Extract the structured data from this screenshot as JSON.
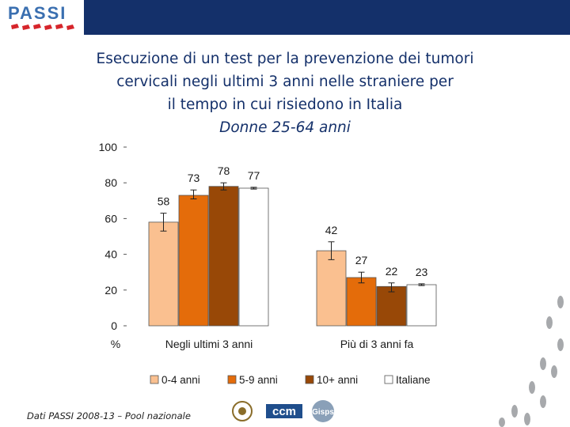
{
  "header": {
    "logo_text": "PASSI"
  },
  "title": {
    "lines": [
      "Esecuzione di un test per la prevenzione dei tumori",
      "cervicali negli ultimi 3 anni nelle straniere per",
      "il tempo in cui risiedono in Italia"
    ],
    "subtitle": "Donne 25-64 anni"
  },
  "chart_data": {
    "type": "bar",
    "categories": [
      "Negli ultimi 3 anni",
      "Più di 3 anni fa"
    ],
    "series": [
      {
        "name": "0-4 anni",
        "values": [
          58,
          42
        ],
        "ci": [
          [
            53,
            63
          ],
          [
            37,
            47
          ]
        ],
        "color": "#fac090"
      },
      {
        "name": "5-9 anni",
        "values": [
          73,
          27
        ],
        "ci": [
          [
            71,
            76
          ],
          [
            24,
            30
          ]
        ],
        "color": "#e46c0a"
      },
      {
        "name": "10+ anni",
        "values": [
          78,
          22
        ],
        "ci": [
          [
            76,
            80
          ],
          [
            19,
            24
          ]
        ],
        "color": "#984807"
      },
      {
        "name": "Italiane",
        "values": [
          77,
          23
        ],
        "ci": [
          [
            76.5,
            77.5
          ],
          [
            22.5,
            23.5
          ]
        ],
        "color": "#ffffff"
      }
    ],
    "ylim": [
      0,
      100
    ],
    "yticks": [
      "0",
      "20",
      "40",
      "60",
      "80",
      "100"
    ],
    "ylabel": "%",
    "legend_position": "bottom",
    "grid": false
  },
  "footer": {
    "source": "Dati PASSI 2008-13 – Pool nazionale"
  },
  "logos": {
    "ccm": "ccm",
    "gisps": "Gisps"
  }
}
